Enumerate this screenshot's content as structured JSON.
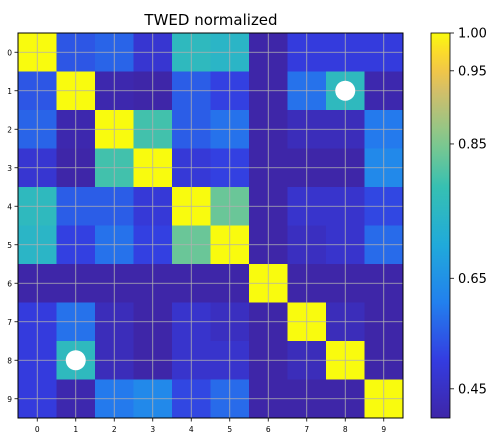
{
  "chart_data": {
    "type": "heatmap",
    "title": "TWED normalized",
    "x_ticks": [
      "0",
      "1",
      "2",
      "3",
      "4",
      "5",
      "6",
      "7",
      "8",
      "9"
    ],
    "y_ticks": [
      "0",
      "1",
      "2",
      "3",
      "4",
      "5",
      "6",
      "7",
      "8",
      "9"
    ],
    "values": [
      [
        1.0,
        0.5,
        0.52,
        0.44,
        0.72,
        0.7,
        0.37,
        0.46,
        0.46,
        0.46
      ],
      [
        0.5,
        1.0,
        0.38,
        0.37,
        0.51,
        0.47,
        0.37,
        0.54,
        0.72,
        0.38
      ],
      [
        0.52,
        0.38,
        1.0,
        0.76,
        0.51,
        0.54,
        0.37,
        0.4,
        0.4,
        0.55
      ],
      [
        0.44,
        0.37,
        0.76,
        1.0,
        0.45,
        0.47,
        0.37,
        0.37,
        0.37,
        0.58
      ],
      [
        0.72,
        0.51,
        0.51,
        0.45,
        1.0,
        0.8,
        0.37,
        0.43,
        0.43,
        0.48
      ],
      [
        0.7,
        0.47,
        0.54,
        0.47,
        0.8,
        1.0,
        0.37,
        0.41,
        0.43,
        0.53
      ],
      [
        0.37,
        0.37,
        0.37,
        0.37,
        0.37,
        0.37,
        1.0,
        0.37,
        0.37,
        0.37
      ],
      [
        0.46,
        0.54,
        0.4,
        0.37,
        0.43,
        0.41,
        0.37,
        1.0,
        0.4,
        0.37
      ],
      [
        0.46,
        0.72,
        0.4,
        0.37,
        0.43,
        0.43,
        0.37,
        0.4,
        1.0,
        0.37
      ],
      [
        0.46,
        0.38,
        0.55,
        0.58,
        0.48,
        0.53,
        0.37,
        0.37,
        0.37,
        1.0
      ]
    ],
    "markers": [
      {
        "row": 1,
        "col": 8,
        "shape": "circle",
        "color": "#ffffff"
      },
      {
        "row": 8,
        "col": 1,
        "shape": "circle",
        "color": "#ffffff"
      }
    ],
    "colorscale": "parula",
    "vmin": 0.37,
    "vmax": 1.0,
    "colorbar_ticks": [
      1.0,
      0.95,
      0.85,
      0.65,
      0.45
    ],
    "colorbar_tick_labels": [
      "1.00",
      "0.95",
      "0.85",
      "0.65",
      "0.45"
    ],
    "colorbar_scale": "nonlinear",
    "grid": true,
    "grid_color": "#b0b0b0"
  }
}
